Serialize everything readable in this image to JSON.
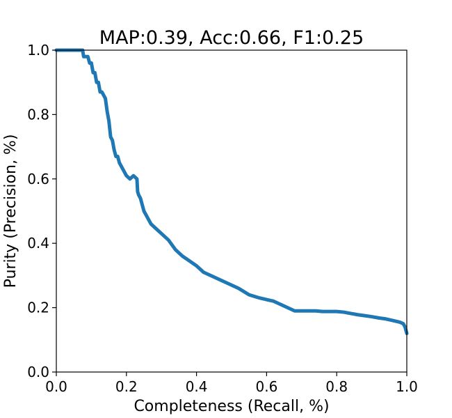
{
  "chart_data": {
    "type": "line",
    "title": "MAP:0.39, Acc:0.66, F1:0.25",
    "xlabel": "Completeness (Recall, %)",
    "ylabel": "Purity (Precision, %)",
    "xlim": [
      0.0,
      1.0
    ],
    "ylim": [
      0.0,
      1.0
    ],
    "xticks": [
      "0.0",
      "0.2",
      "0.4",
      "0.6",
      "0.8",
      "1.0"
    ],
    "yticks": [
      "0.0",
      "0.2",
      "0.4",
      "0.6",
      "0.8",
      "1.0"
    ],
    "grid": false,
    "series": [
      {
        "color": "#1f77b4",
        "x": [
          0.0,
          0.02,
          0.05,
          0.075,
          0.078,
          0.09,
          0.095,
          0.1,
          0.105,
          0.11,
          0.115,
          0.12,
          0.125,
          0.13,
          0.14,
          0.145,
          0.15,
          0.155,
          0.16,
          0.165,
          0.17,
          0.175,
          0.18,
          0.185,
          0.19,
          0.2,
          0.21,
          0.22,
          0.23,
          0.232,
          0.235,
          0.24,
          0.245,
          0.25,
          0.26,
          0.27,
          0.28,
          0.29,
          0.3,
          0.32,
          0.34,
          0.36,
          0.38,
          0.4,
          0.42,
          0.44,
          0.46,
          0.48,
          0.5,
          0.52,
          0.55,
          0.58,
          0.6,
          0.62,
          0.64,
          0.66,
          0.68,
          0.7,
          0.72,
          0.74,
          0.76,
          0.78,
          0.8,
          0.82,
          0.84,
          0.86,
          0.88,
          0.9,
          0.92,
          0.94,
          0.96,
          0.98,
          0.99,
          0.995,
          1.0
        ],
        "y": [
          1.0,
          1.0,
          1.0,
          1.0,
          0.98,
          0.98,
          0.96,
          0.96,
          0.93,
          0.93,
          0.9,
          0.9,
          0.87,
          0.87,
          0.85,
          0.81,
          0.78,
          0.73,
          0.72,
          0.69,
          0.67,
          0.67,
          0.65,
          0.64,
          0.63,
          0.61,
          0.6,
          0.61,
          0.6,
          0.56,
          0.55,
          0.54,
          0.52,
          0.5,
          0.48,
          0.46,
          0.45,
          0.44,
          0.43,
          0.41,
          0.38,
          0.36,
          0.345,
          0.33,
          0.31,
          0.3,
          0.29,
          0.28,
          0.27,
          0.26,
          0.24,
          0.23,
          0.225,
          0.22,
          0.21,
          0.2,
          0.19,
          0.19,
          0.19,
          0.19,
          0.188,
          0.188,
          0.188,
          0.186,
          0.182,
          0.178,
          0.175,
          0.172,
          0.168,
          0.165,
          0.16,
          0.155,
          0.15,
          0.14,
          0.12
        ]
      }
    ]
  }
}
